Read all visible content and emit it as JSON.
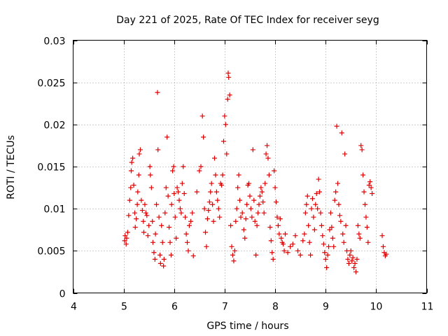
{
  "chart_data": {
    "type": "scatter",
    "title": "Day 221 of 2025, Rate Of TEC Index for receiver seyg",
    "xlabel": "GPS time / hours",
    "ylabel": "ROTI / TECUs",
    "xlim": [
      4,
      11
    ],
    "ylim": [
      0,
      0.03
    ],
    "x_ticks": [
      4,
      5,
      6,
      7,
      8,
      9,
      10,
      11
    ],
    "x_tick_labels": [
      "4",
      "5",
      "6",
      "7",
      "8",
      "9",
      "10",
      "11"
    ],
    "y_ticks": [
      0,
      0.005,
      0.01,
      0.015,
      0.02,
      0.025,
      0.03
    ],
    "y_tick_labels": [
      "0",
      "0.005",
      "0.01",
      "0.015",
      "0.02",
      "0.025",
      "0.03"
    ],
    "grid": true,
    "marker": "+",
    "point_color": "#e00000",
    "series": [
      {
        "points": [
          [
            5.02,
            0.0062
          ],
          [
            5.03,
            0.0068
          ],
          [
            5.05,
            0.0058
          ],
          [
            5.06,
            0.0065
          ],
          [
            5.08,
            0.0072
          ],
          [
            5.1,
            0.0092
          ],
          [
            5.12,
            0.011
          ],
          [
            5.14,
            0.0125
          ],
          [
            5.15,
            0.0145
          ],
          [
            5.16,
            0.0155
          ],
          [
            5.18,
            0.016
          ],
          [
            5.2,
            0.0128
          ],
          [
            5.22,
            0.0095
          ],
          [
            5.23,
            0.0078
          ],
          [
            5.25,
            0.0088
          ],
          [
            5.27,
            0.0105
          ],
          [
            5.28,
            0.012
          ],
          [
            5.3,
            0.014
          ],
          [
            5.31,
            0.0165
          ],
          [
            5.33,
            0.017
          ],
          [
            5.35,
            0.011
          ],
          [
            5.37,
            0.0098
          ],
          [
            5.39,
            0.0085
          ],
          [
            5.4,
            0.0072
          ],
          [
            5.42,
            0.0105
          ],
          [
            5.44,
            0.0095
          ],
          [
            5.46,
            0.0092
          ],
          [
            5.48,
            0.0068
          ],
          [
            5.5,
            0.008
          ],
          [
            5.52,
            0.015
          ],
          [
            5.53,
            0.014
          ],
          [
            5.55,
            0.0125
          ],
          [
            5.57,
            0.0085
          ],
          [
            5.58,
            0.006
          ],
          [
            5.6,
            0.0048
          ],
          [
            5.62,
            0.004
          ],
          [
            5.63,
            0.007
          ],
          [
            5.65,
            0.0105
          ],
          [
            5.67,
            0.0238
          ],
          [
            5.68,
            0.017
          ],
          [
            5.7,
            0.009
          ],
          [
            5.72,
            0.0045
          ],
          [
            5.73,
            0.0035
          ],
          [
            5.75,
            0.008
          ],
          [
            5.77,
            0.006
          ],
          [
            5.79,
            0.0032
          ],
          [
            5.8,
            0.004
          ],
          [
            5.82,
            0.0095
          ],
          [
            5.84,
            0.0125
          ],
          [
            5.86,
            0.0185
          ],
          [
            5.88,
            0.0115
          ],
          [
            5.9,
            0.0078
          ],
          [
            5.92,
            0.006
          ],
          [
            5.94,
            0.0045
          ],
          [
            5.95,
            0.0105
          ],
          [
            5.97,
            0.0145
          ],
          [
            5.99,
            0.015
          ],
          [
            6.0,
            0.0118
          ],
          [
            6.02,
            0.009
          ],
          [
            6.04,
            0.0065
          ],
          [
            6.06,
            0.0125
          ],
          [
            6.08,
            0.012
          ],
          [
            6.1,
            0.011
          ],
          [
            6.12,
            0.01
          ],
          [
            6.14,
            0.0095
          ],
          [
            6.16,
            0.013
          ],
          [
            6.18,
            0.015
          ],
          [
            6.2,
            0.0118
          ],
          [
            6.22,
            0.009
          ],
          [
            6.24,
            0.007
          ],
          [
            6.26,
            0.006
          ],
          [
            6.28,
            0.005
          ],
          [
            6.3,
            0.008
          ],
          [
            6.33,
            0.0085
          ],
          [
            6.36,
            0.0095
          ],
          [
            6.38,
            0.0044
          ],
          [
            6.45,
            0.012
          ],
          [
            6.5,
            0.0145
          ],
          [
            6.53,
            0.015
          ],
          [
            6.56,
            0.021
          ],
          [
            6.58,
            0.0185
          ],
          [
            6.6,
            0.01
          ],
          [
            6.62,
            0.0072
          ],
          [
            6.64,
            0.0055
          ],
          [
            6.66,
            0.0088
          ],
          [
            6.68,
            0.0098
          ],
          [
            6.7,
            0.0108
          ],
          [
            6.72,
            0.012
          ],
          [
            6.74,
            0.013
          ],
          [
            6.76,
            0.0105
          ],
          [
            6.78,
            0.0085
          ],
          [
            6.8,
            0.016
          ],
          [
            6.82,
            0.014
          ],
          [
            6.84,
            0.012
          ],
          [
            6.86,
            0.011
          ],
          [
            6.88,
            0.01
          ],
          [
            6.9,
            0.009
          ],
          [
            6.92,
            0.013
          ],
          [
            6.94,
            0.0128
          ],
          [
            6.96,
            0.014
          ],
          [
            6.98,
            0.018
          ],
          [
            7.0,
            0.021
          ],
          [
            7.02,
            0.02
          ],
          [
            7.04,
            0.0165
          ],
          [
            7.06,
            0.023
          ],
          [
            7.07,
            0.0261
          ],
          [
            7.08,
            0.0256
          ],
          [
            7.1,
            0.0235
          ],
          [
            7.12,
            0.008
          ],
          [
            7.14,
            0.0055
          ],
          [
            7.16,
            0.0045
          ],
          [
            7.18,
            0.0038
          ],
          [
            7.2,
            0.005
          ],
          [
            7.22,
            0.0085
          ],
          [
            7.24,
            0.01
          ],
          [
            7.26,
            0.0125
          ],
          [
            7.28,
            0.014
          ],
          [
            7.3,
            0.011
          ],
          [
            7.32,
            0.009
          ],
          [
            7.35,
            0.0095
          ],
          [
            7.38,
            0.0075
          ],
          [
            7.4,
            0.0065
          ],
          [
            7.42,
            0.0088
          ],
          [
            7.44,
            0.0105
          ],
          [
            7.46,
            0.0128
          ],
          [
            7.48,
            0.013
          ],
          [
            7.5,
            0.0115
          ],
          [
            7.52,
            0.01
          ],
          [
            7.54,
            0.009
          ],
          [
            7.56,
            0.017
          ],
          [
            7.58,
            0.011
          ],
          [
            7.6,
            0.0085
          ],
          [
            7.62,
            0.0045
          ],
          [
            7.64,
            0.008
          ],
          [
            7.66,
            0.0095
          ],
          [
            7.68,
            0.0105
          ],
          [
            7.7,
            0.0115
          ],
          [
            7.72,
            0.0125
          ],
          [
            7.74,
            0.012
          ],
          [
            7.76,
            0.0108
          ],
          [
            7.78,
            0.0095
          ],
          [
            7.8,
            0.013
          ],
          [
            7.82,
            0.0165
          ],
          [
            7.84,
            0.0175
          ],
          [
            7.86,
            0.016
          ],
          [
            7.88,
            0.014
          ],
          [
            7.9,
            0.0078
          ],
          [
            7.92,
            0.0062
          ],
          [
            7.94,
            0.0048
          ],
          [
            7.96,
            0.004
          ],
          [
            7.98,
            0.0145
          ],
          [
            8.0,
            0.0125
          ],
          [
            8.02,
            0.0108
          ],
          [
            8.04,
            0.009
          ],
          [
            8.06,
            0.008
          ],
          [
            8.08,
            0.007
          ],
          [
            8.1,
            0.0088
          ],
          [
            8.12,
            0.0065
          ],
          [
            8.14,
            0.006
          ],
          [
            8.16,
            0.0058
          ],
          [
            8.18,
            0.005
          ],
          [
            8.2,
            0.007
          ],
          [
            8.25,
            0.0048
          ],
          [
            8.3,
            0.0055
          ],
          [
            8.35,
            0.0058
          ],
          [
            8.4,
            0.0068
          ],
          [
            8.45,
            0.005
          ],
          [
            8.5,
            0.0045
          ],
          [
            8.55,
            0.0062
          ],
          [
            8.58,
            0.007
          ],
          [
            8.6,
            0.0095
          ],
          [
            8.62,
            0.0105
          ],
          [
            8.64,
            0.0115
          ],
          [
            8.66,
            0.008
          ],
          [
            8.68,
            0.006
          ],
          [
            8.7,
            0.0045
          ],
          [
            8.72,
            0.01
          ],
          [
            8.74,
            0.0112
          ],
          [
            8.76,
            0.009
          ],
          [
            8.78,
            0.0075
          ],
          [
            8.8,
            0.0105
          ],
          [
            8.82,
            0.0118
          ],
          [
            8.84,
            0.01
          ],
          [
            8.86,
            0.0135
          ],
          [
            8.88,
            0.012
          ],
          [
            8.9,
            0.0095
          ],
          [
            8.92,
            0.008
          ],
          [
            8.94,
            0.0068
          ],
          [
            8.96,
            0.0058
          ],
          [
            8.98,
            0.0048
          ],
          [
            9.0,
            0.004
          ],
          [
            9.02,
            0.003
          ],
          [
            9.04,
            0.0045
          ],
          [
            9.06,
            0.0055
          ],
          [
            9.08,
            0.0075
          ],
          [
            9.1,
            0.0095
          ],
          [
            9.12,
            0.0078
          ],
          [
            9.14,
            0.0065
          ],
          [
            9.16,
            0.0055
          ],
          [
            9.18,
            0.011
          ],
          [
            9.2,
            0.012
          ],
          [
            9.22,
            0.0198
          ],
          [
            9.24,
            0.013
          ],
          [
            9.26,
            0.0105
          ],
          [
            9.28,
            0.0092
          ],
          [
            9.3,
            0.0085
          ],
          [
            9.32,
            0.019
          ],
          [
            9.34,
            0.007
          ],
          [
            9.36,
            0.006
          ],
          [
            9.38,
            0.0165
          ],
          [
            9.4,
            0.008
          ],
          [
            9.42,
            0.005
          ],
          [
            9.44,
            0.004
          ],
          [
            9.46,
            0.0035
          ],
          [
            9.48,
            0.0045
          ],
          [
            9.5,
            0.005
          ],
          [
            9.52,
            0.0038
          ],
          [
            9.54,
            0.0042
          ],
          [
            9.56,
            0.003
          ],
          [
            9.58,
            0.0035
          ],
          [
            9.6,
            0.0025
          ],
          [
            9.62,
            0.004
          ],
          [
            9.64,
            0.008
          ],
          [
            9.66,
            0.007
          ],
          [
            9.68,
            0.0065
          ],
          [
            9.7,
            0.0175
          ],
          [
            9.72,
            0.017
          ],
          [
            9.74,
            0.014
          ],
          [
            9.76,
            0.012
          ],
          [
            9.78,
            0.0105
          ],
          [
            9.8,
            0.009
          ],
          [
            9.82,
            0.0078
          ],
          [
            9.84,
            0.006
          ],
          [
            9.86,
            0.0128
          ],
          [
            9.88,
            0.0132
          ],
          [
            9.9,
            0.0125
          ],
          [
            9.92,
            0.0118
          ],
          [
            10.12,
            0.0068
          ],
          [
            10.14,
            0.0055
          ],
          [
            10.16,
            0.0048
          ],
          [
            10.18,
            0.0044
          ],
          [
            10.2,
            0.0046
          ]
        ]
      }
    ]
  }
}
